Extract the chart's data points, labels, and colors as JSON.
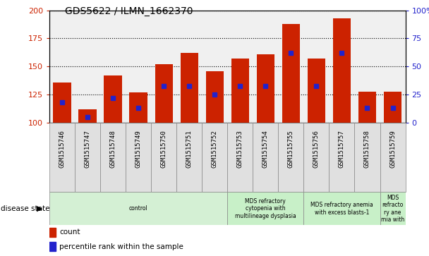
{
  "title": "GDS5622 / ILMN_1662370",
  "samples": [
    "GSM1515746",
    "GSM1515747",
    "GSM1515748",
    "GSM1515749",
    "GSM1515750",
    "GSM1515751",
    "GSM1515752",
    "GSM1515753",
    "GSM1515754",
    "GSM1515755",
    "GSM1515756",
    "GSM1515757",
    "GSM1515758",
    "GSM1515759"
  ],
  "counts": [
    136,
    112,
    142,
    127,
    152,
    162,
    146,
    157,
    161,
    188,
    157,
    193,
    128,
    128
  ],
  "percentile_ranks": [
    18,
    5,
    22,
    13,
    33,
    33,
    25,
    33,
    33,
    62,
    33,
    62,
    13,
    13
  ],
  "ylim_left": [
    100,
    200
  ],
  "ylim_right": [
    0,
    100
  ],
  "yticks_left": [
    100,
    125,
    150,
    175,
    200
  ],
  "yticks_right": [
    0,
    25,
    50,
    75,
    100
  ],
  "bar_color": "#cc2200",
  "blue_color": "#2222cc",
  "plot_bg_color": "#f0f0f0",
  "disease_groups": [
    {
      "label": "control",
      "start": 0,
      "end": 7,
      "color": "#d4f0d4"
    },
    {
      "label": "MDS refractory\ncytopenia with\nmultilineage dysplasia",
      "start": 7,
      "end": 10,
      "color": "#c8f0c8"
    },
    {
      "label": "MDS refractory anemia\nwith excess blasts-1",
      "start": 10,
      "end": 13,
      "color": "#c8f0c8"
    },
    {
      "label": "MDS\nrefracto\nry ane\nmia with",
      "start": 13,
      "end": 14,
      "color": "#c8f0c8"
    }
  ],
  "legend_count_label": "count",
  "legend_pct_label": "percentile rank within the sample",
  "disease_state_label": "disease state"
}
